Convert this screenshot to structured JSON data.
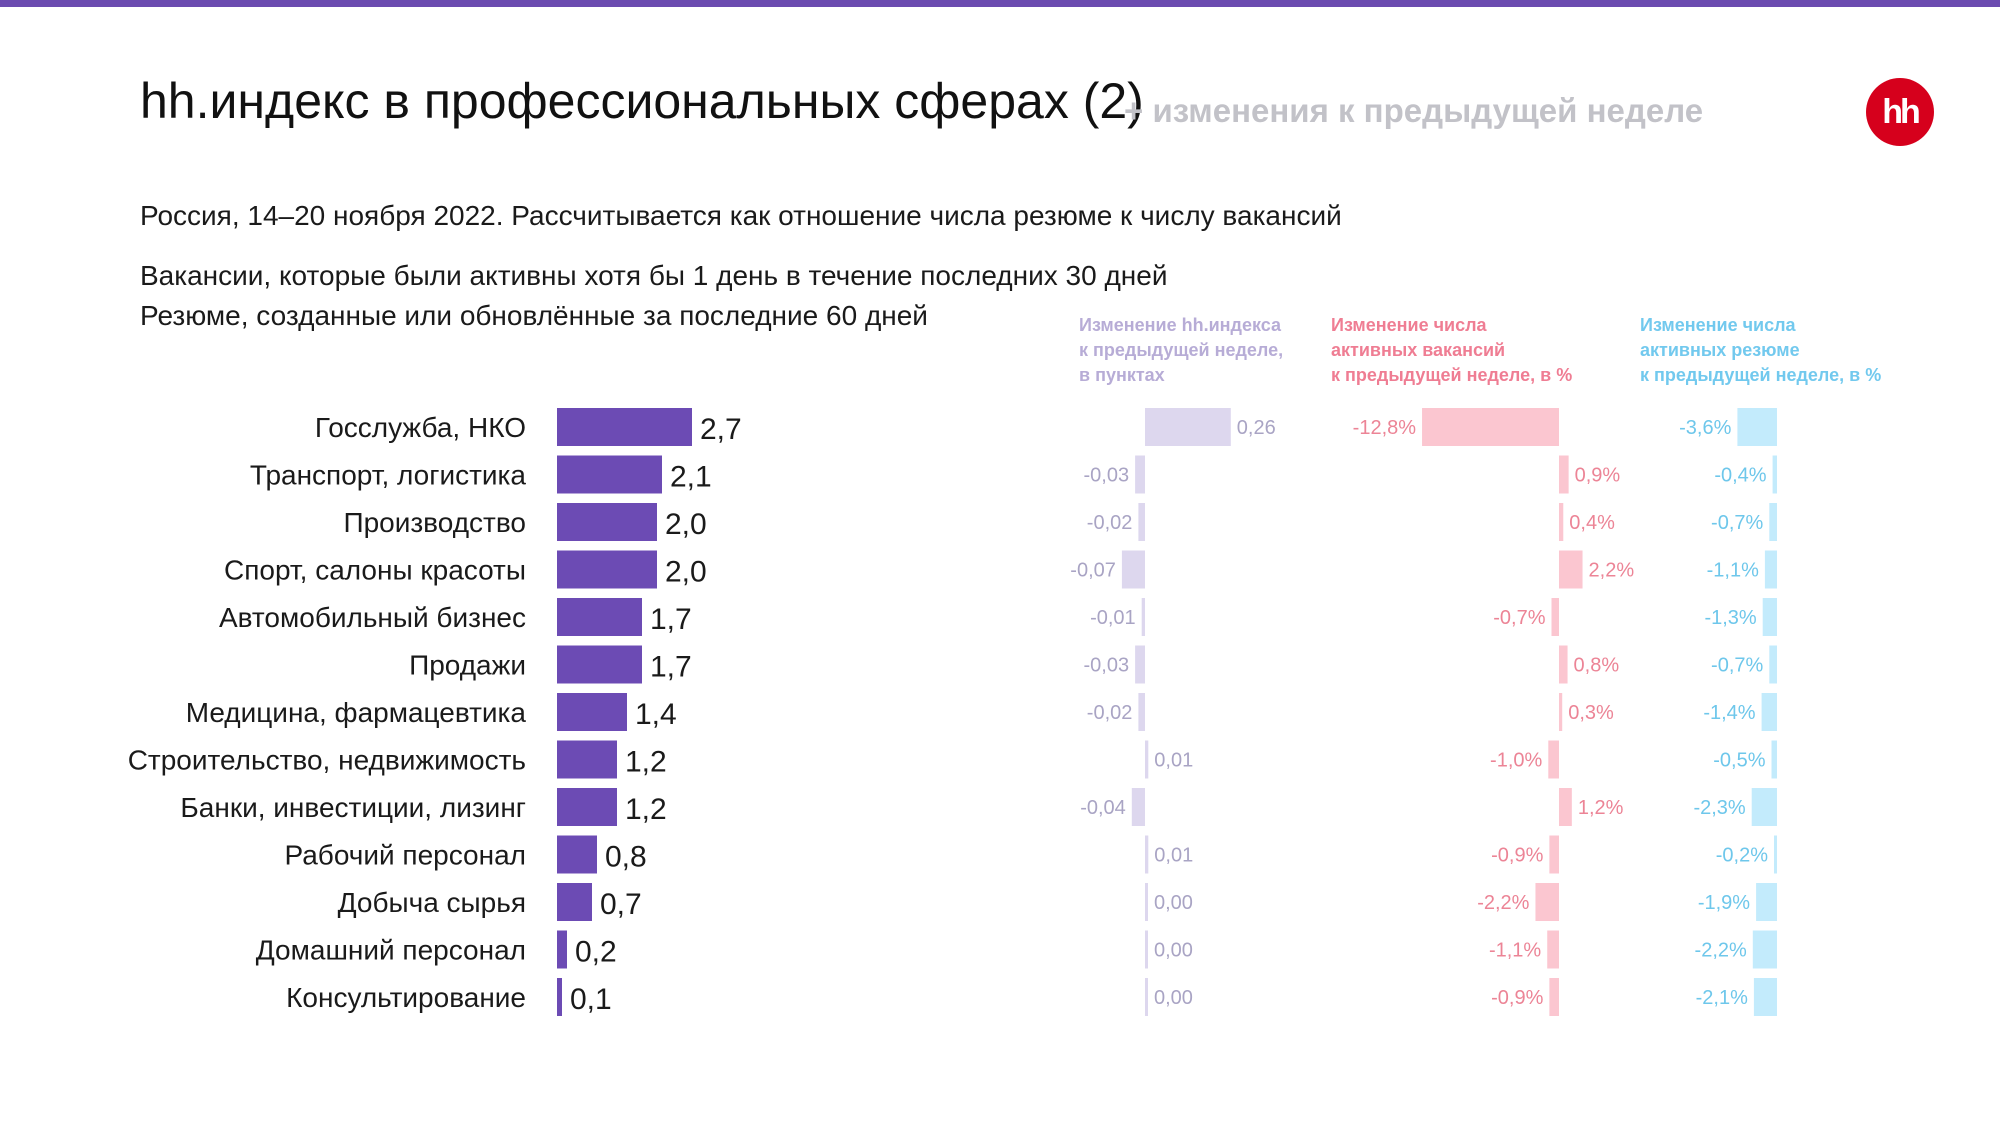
{
  "header": {
    "title": "hh.индекс в профессиональных сферах (2)",
    "subtitle": "+ изменения к предыдущей неделе",
    "logo": "hh"
  },
  "notes": {
    "line1": "Россия, 14–20 ноября 2022. Рассчитывается как отношение числа резюме к числу вакансий",
    "line2": "Вакансии, которые были активны хотя бы 1 день в течение последних 30 дней",
    "line3": "Резюме, созданные или обновлённые за последние 60 дней"
  },
  "column_headers": {
    "index_change": [
      "Изменение hh.индекса",
      "к предыдущей неделе,",
      "в пунктах"
    ],
    "vacancies_change": [
      "Изменение числа",
      "активных вакансий",
      "к предыдущей неделе, в %"
    ],
    "resumes_change": [
      "Изменение числа",
      "активных резюме",
      "к предыдущей неделе, в %"
    ]
  },
  "colors": {
    "top_bar": "#6b4bb0",
    "index_bar": "#6c4bb4",
    "index_change": "#ddd7ee",
    "index_change_text": "#a9a4c4",
    "vacancies_change": "#fbc6d0",
    "vacancies_change_text": "#ec8496",
    "resumes_change": "#c3ebfc",
    "resumes_change_text": "#6ec7eb",
    "logo": "#d6001c"
  },
  "chart_data": [
    {
      "type": "bar",
      "orientation": "horizontal",
      "categories": [
        "Госслужба, НКО",
        "Транспорт, логистика",
        "Производство",
        "Спорт, салоны красоты",
        "Автомобильный бизнес",
        "Продажи",
        "Медицина, фармацевтика",
        "Строительство, недвижимость",
        "Банки, инвестиции, лизинг",
        "Рабочий персонал",
        "Добыча сырья",
        "Домашний персонал",
        "Консультирование"
      ],
      "values": [
        2.7,
        2.1,
        2.0,
        2.0,
        1.7,
        1.7,
        1.4,
        1.2,
        1.2,
        0.8,
        0.7,
        0.2,
        0.1
      ],
      "labels": [
        "2,7",
        "2,1",
        "2,0",
        "2,0",
        "1,7",
        "1,7",
        "1,4",
        "1,2",
        "1,2",
        "0,8",
        "0,7",
        "0,2",
        "0,1"
      ]
    },
    {
      "type": "bar",
      "orientation": "horizontal",
      "title": "Изменение hh.индекса к предыдущей неделе, в пунктах",
      "categories": [
        "Госслужба, НКО",
        "Транспорт, логистика",
        "Производство",
        "Спорт, салоны красоты",
        "Автомобильный бизнес",
        "Продажи",
        "Медицина, фармацевтика",
        "Строительство, недвижимость",
        "Банки, инвестиции, лизинг",
        "Рабочий персонал",
        "Добыча сырья",
        "Домашний персонал",
        "Консультирование"
      ],
      "values": [
        0.26,
        -0.03,
        -0.02,
        -0.07,
        -0.01,
        -0.03,
        -0.02,
        0.01,
        -0.04,
        0.01,
        0.0,
        0.0,
        0.0
      ],
      "labels": [
        "0,26",
        "-0,03",
        "-0,02",
        "-0,07",
        "-0,01",
        "-0,03",
        "-0,02",
        "0,01",
        "-0,04",
        "0,01",
        "0,00",
        "0,00",
        "0,00"
      ]
    },
    {
      "type": "bar",
      "orientation": "horizontal",
      "title": "Изменение числа активных вакансий к предыдущей неделе, в %",
      "categories": [
        "Госслужба, НКО",
        "Транспорт, логистика",
        "Производство",
        "Спорт, салоны красоты",
        "Автомобильный бизнес",
        "Продажи",
        "Медицина, фармацевтика",
        "Строительство, недвижимость",
        "Банки, инвестиции, лизинг",
        "Рабочий персонал",
        "Добыча сырья",
        "Домашний персонал",
        "Консультирование"
      ],
      "values": [
        -12.8,
        0.9,
        0.4,
        2.2,
        -0.7,
        0.8,
        0.3,
        -1.0,
        1.2,
        -0.9,
        -2.2,
        -1.1,
        -0.9
      ],
      "labels": [
        "-12,8%",
        "0,9%",
        "0,4%",
        "2,2%",
        "-0,7%",
        "0,8%",
        "0,3%",
        "-1,0%",
        "1,2%",
        "-0,9%",
        "-2,2%",
        "-1,1%",
        "-0,9%"
      ]
    },
    {
      "type": "bar",
      "orientation": "horizontal",
      "title": "Изменение числа активных резюме к предыдущей неделе, в %",
      "categories": [
        "Госслужба, НКО",
        "Транспорт, логистика",
        "Производство",
        "Спорт, салоны красоты",
        "Автомобильный бизнес",
        "Продажи",
        "Медицина, фармацевтика",
        "Строительство, недвижимость",
        "Банки, инвестиции, лизинг",
        "Рабочий персонал",
        "Добыча сырья",
        "Домашний персонал",
        "Консультирование"
      ],
      "values": [
        -3.6,
        -0.4,
        -0.7,
        -1.1,
        -1.3,
        -0.7,
        -1.4,
        -0.5,
        -2.3,
        -0.2,
        -1.9,
        -2.2,
        -2.1
      ],
      "labels": [
        "-3,6%",
        "-0,4%",
        "-0,7%",
        "-1,1%",
        "-1,3%",
        "-0,7%",
        "-1,4%",
        "-0,5%",
        "-2,3%",
        "-0,2%",
        "-1,9%",
        "-2,2%",
        "-2,1%"
      ]
    }
  ]
}
